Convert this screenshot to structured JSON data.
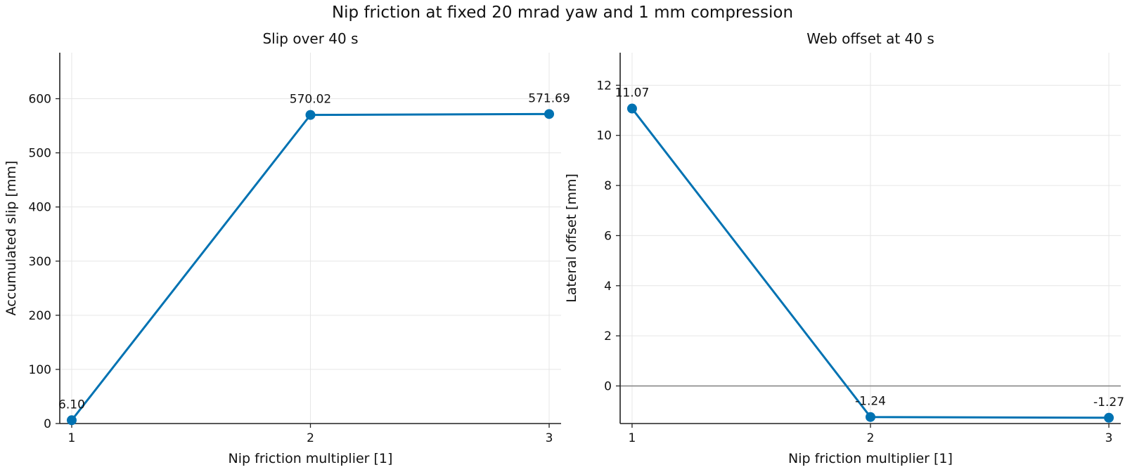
{
  "figure_title": "Nip friction at fixed 20 mrad yaw and 1 mm compression",
  "colors": {
    "series": "#0072b2",
    "grid": "#e6e6e6",
    "axis": "#222222",
    "zero_line": "#808080"
  },
  "chart_data": [
    {
      "type": "line",
      "title": "Slip over 40 s",
      "xlabel": "Nip friction multiplier [1]",
      "ylabel": "Accumulated slip [mm]",
      "x": [
        1,
        2,
        3
      ],
      "values": [
        6.1,
        570.02,
        571.69
      ],
      "data_labels": [
        "6.10",
        "570.02",
        "571.69"
      ],
      "xlim": [
        0.95,
        3.05
      ],
      "ylim": [
        0,
        685
      ],
      "xticks": [
        1,
        2,
        3
      ],
      "yticks": [
        0,
        100,
        200,
        300,
        400,
        500,
        600
      ],
      "grid": true,
      "zero_line": false
    },
    {
      "type": "line",
      "title": "Web offset at 40 s",
      "xlabel": "Nip friction multiplier [1]",
      "ylabel": "Lateral offset [mm]",
      "x": [
        1,
        2,
        3
      ],
      "values": [
        11.07,
        -1.24,
        -1.27
      ],
      "data_labels": [
        "11.07",
        "-1.24",
        "-1.27"
      ],
      "xlim": [
        0.95,
        3.05
      ],
      "ylim": [
        -1.5,
        13.3
      ],
      "xticks": [
        1,
        2,
        3
      ],
      "yticks": [
        0,
        2,
        4,
        6,
        8,
        10,
        12
      ],
      "grid": true,
      "zero_line": true
    }
  ]
}
